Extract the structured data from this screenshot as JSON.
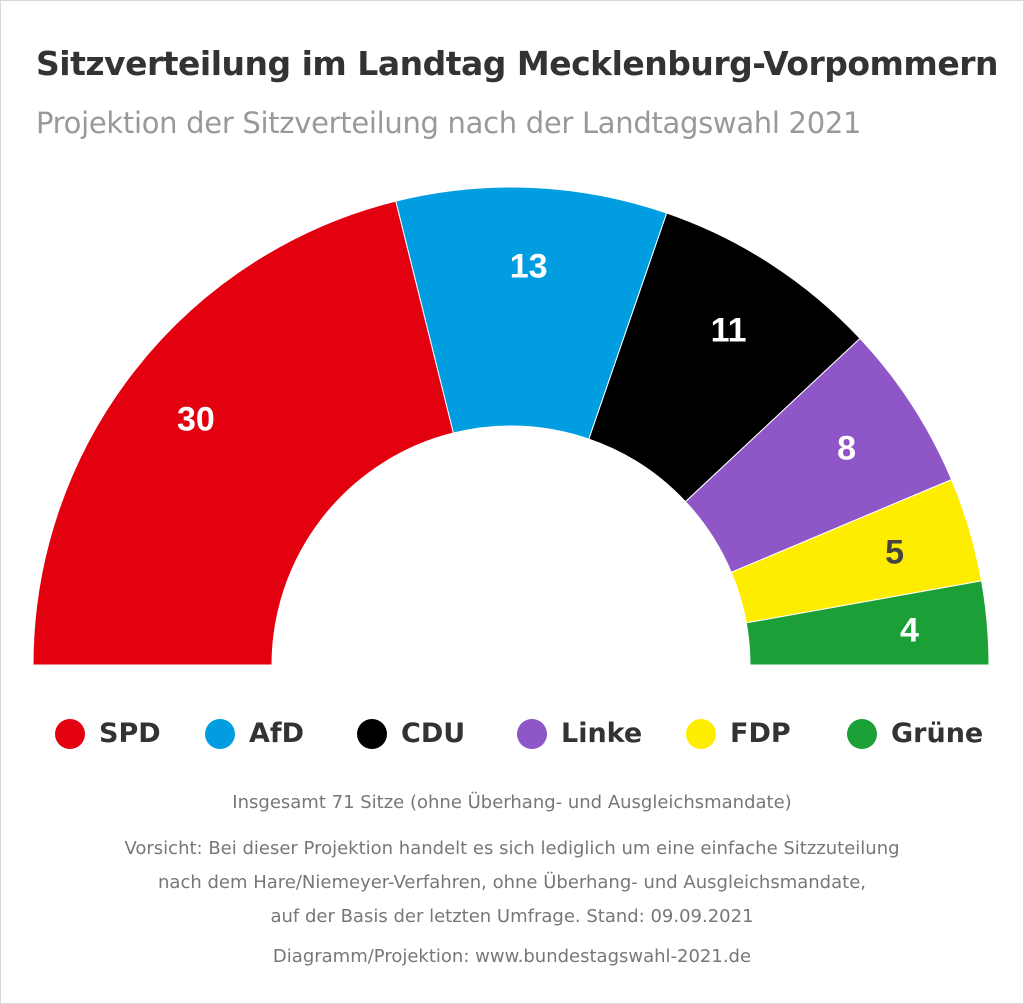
{
  "title": "Sitzverteilung im Landtag Mecklenburg-Vorpommern",
  "subtitle": "Projektion der Sitzverteilung nach der Landtagswahl 2021",
  "chart_data": {
    "type": "pie",
    "variant": "semicircle-donut",
    "title": "Sitzverteilung im Landtag Mecklenburg-Vorpommern",
    "subtitle": "Projektion der Sitzverteilung nach der Landtagswahl 2021",
    "total": 71,
    "categories": [
      "SPD",
      "AfD",
      "CDU",
      "Linke",
      "FDP",
      "Grüne"
    ],
    "values": [
      30,
      13,
      11,
      8,
      5,
      4
    ],
    "colors": [
      "#e3000f",
      "#009ee0",
      "#000000",
      "#8f56c7",
      "#ffed00",
      "#1aa037"
    ],
    "label_colors": [
      "#ffffff",
      "#ffffff",
      "#ffffff",
      "#ffffff",
      "#444444",
      "#ffffff"
    ],
    "legend_position": "bottom"
  },
  "footer": {
    "total_note": "Insgesamt 71 Sitze (ohne Überhang- und Ausgleichsmandate)",
    "disclaimer_lines": [
      "Vorsicht: Bei dieser Projektion handelt es sich lediglich um eine einfache Sitzzuteilung",
      "nach dem Hare/Niemeyer-Verfahren, ohne Überhang- und Ausgleichsmandate,",
      "auf der Basis der letzten Umfrage. Stand: 09.09.2021"
    ],
    "source": "Diagramm/Projektion: www.bundestagswahl-2021.de"
  }
}
